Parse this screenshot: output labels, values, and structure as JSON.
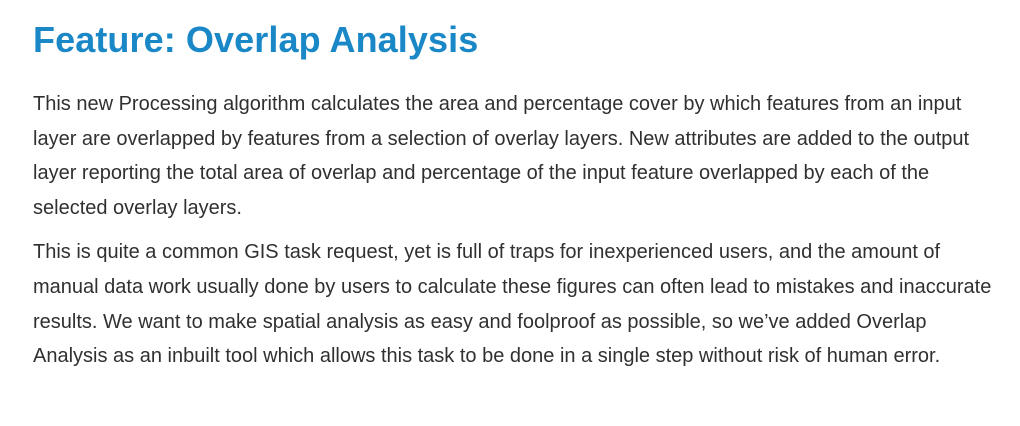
{
  "article": {
    "heading": "Feature: Overlap Analysis",
    "heading_color": "#1a87c7",
    "paragraphs": [
      "This new Processing algorithm calculates the area and percentage cover by which features from an input layer are overlapped by features from a selection of overlay layers. New attributes are added to the output layer reporting the total area of overlap and percentage of the input feature overlapped by each of the selected overlay layers.",
      "This is quite a common GIS task request, yet is full of traps for inexperienced users, and the amount of manual data work usually done by users to calculate these figures can often lead to mistakes and inaccurate results. We want to make spatial analysis as easy and foolproof as possible, so we’ve added Overlap Analysis as an inbuilt tool which allows this task to be done in a single step without risk of human error."
    ]
  }
}
